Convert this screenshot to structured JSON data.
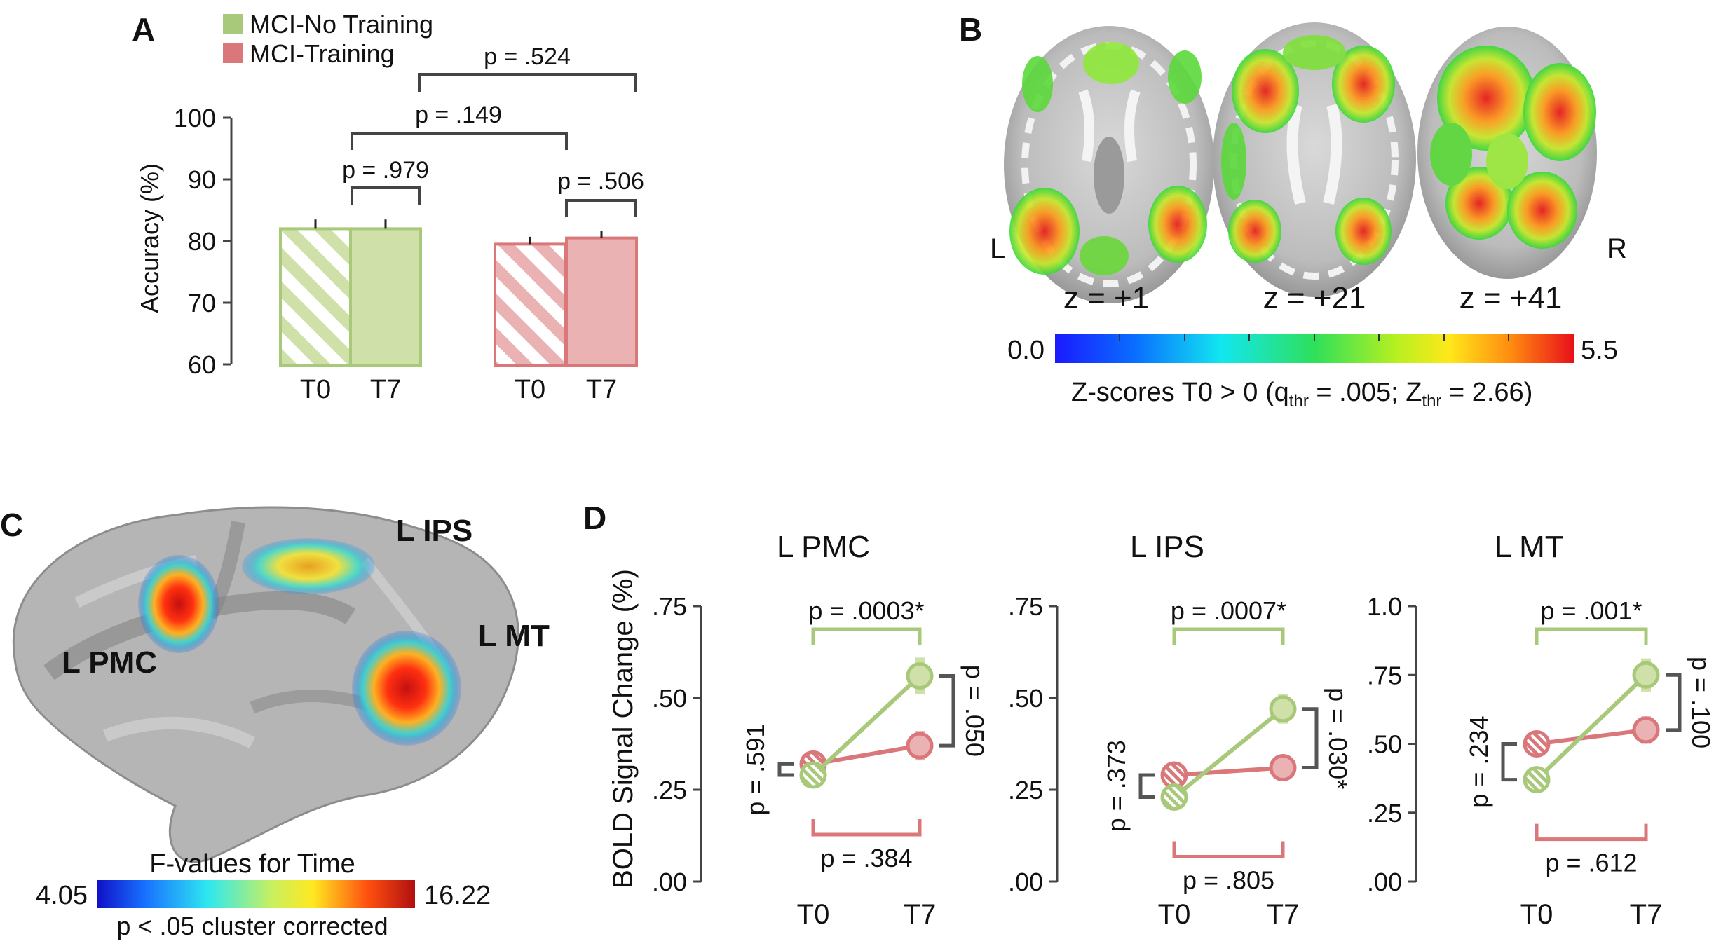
{
  "panels": {
    "a": "A",
    "b": "B",
    "c": "C",
    "d": "D"
  },
  "colors": {
    "no_training": "#a9c97a",
    "no_training_fill": "#cfe0a8",
    "training": "#d9777a",
    "training_fill": "#eab2b3",
    "bracket": "#555555"
  },
  "chart_data": [
    {
      "id": "A",
      "type": "bar",
      "ylabel": "Accuracy (%)",
      "ylim": [
        60,
        100
      ],
      "yticks": [
        "60",
        "70",
        "80",
        "90",
        "100"
      ],
      "legend": [
        "MCI-No Training",
        "MCI-Training"
      ],
      "legend_placement": "top-left",
      "categories": [
        "T0",
        "T7",
        "T0",
        "T7"
      ],
      "bars": [
        {
          "group": "MCI-No Training",
          "time": "T0",
          "value": 82,
          "err": 1.5,
          "hatched": true
        },
        {
          "group": "MCI-No Training",
          "time": "T7",
          "value": 82,
          "err": 1.5,
          "hatched": false
        },
        {
          "group": "MCI-Training",
          "time": "T0",
          "value": 79.5,
          "err": 1.2,
          "hatched": true
        },
        {
          "group": "MCI-Training",
          "time": "T7",
          "value": 80.5,
          "err": 1.2,
          "hatched": false
        }
      ],
      "comparisons": [
        "p = .524",
        "p = .149",
        "p = .979",
        "p = .506"
      ]
    },
    {
      "id": "D-PMC",
      "type": "line",
      "title": "L PMC",
      "ylabel": "BOLD Signal Change (%)",
      "ylim": [
        0,
        0.75
      ],
      "yticks": [
        ".00",
        ".25",
        ".50",
        ".75"
      ],
      "x": [
        "T0",
        "T7"
      ],
      "series": [
        {
          "name": "MCI-No Training",
          "values": [
            0.29,
            0.56
          ],
          "err": [
            0.03,
            0.05
          ]
        },
        {
          "name": "MCI-Training",
          "values": [
            0.32,
            0.37
          ],
          "err": [
            0.02,
            0.04
          ]
        }
      ],
      "comparisons": {
        "top": "p = .0003*",
        "bottom": "p = .384",
        "left": "p = .591",
        "right": "p = .050"
      }
    },
    {
      "id": "D-IPS",
      "type": "line",
      "title": "L IPS",
      "ylim": [
        0,
        0.75
      ],
      "yticks": [
        ".00",
        ".25",
        ".50",
        ".75"
      ],
      "x": [
        "T0",
        "T7"
      ],
      "series": [
        {
          "name": "MCI-No Training",
          "values": [
            0.23,
            0.47
          ],
          "err": [
            0.03,
            0.04
          ]
        },
        {
          "name": "MCI-Training",
          "values": [
            0.29,
            0.31
          ],
          "err": [
            0.02,
            0.03
          ]
        }
      ],
      "comparisons": {
        "top": "p = .0007*",
        "bottom": "p = .805",
        "left": "p = .373",
        "right": "p = .030*"
      }
    },
    {
      "id": "D-MT",
      "type": "line",
      "title": "L MT",
      "ylim": [
        0,
        1.0
      ],
      "yticks": [
        ".00",
        ".25",
        ".50",
        ".75",
        "1.0"
      ],
      "x": [
        "T0",
        "T7"
      ],
      "series": [
        {
          "name": "MCI-No Training",
          "values": [
            0.37,
            0.75
          ],
          "err": [
            0.04,
            0.06
          ]
        },
        {
          "name": "MCI-Training",
          "values": [
            0.5,
            0.55
          ],
          "err": [
            0.03,
            0.05
          ]
        }
      ],
      "comparisons": {
        "top": "p = .001*",
        "bottom": "p = .612",
        "left": "p = .234",
        "right": "p = .100"
      }
    }
  ],
  "brain_b": {
    "side_left": "L",
    "side_right": "R",
    "slices": [
      "z = +1",
      "z = +21",
      "z = +41"
    ],
    "scale_min": "0.0",
    "scale_max": "5.5",
    "caption_main": "Z-scores T0 > 0 (q",
    "caption_sub1": "thr",
    "caption_mid": " = .005; Z",
    "caption_sub2": "thr",
    "caption_end": " =  2.66)"
  },
  "brain_c": {
    "labels": [
      "L PMC",
      "L IPS",
      "L MT"
    ],
    "scale_title": "F-values for Time",
    "scale_min": "4.05",
    "scale_max": "16.22",
    "scale_note": "p < .05 cluster corrected"
  }
}
